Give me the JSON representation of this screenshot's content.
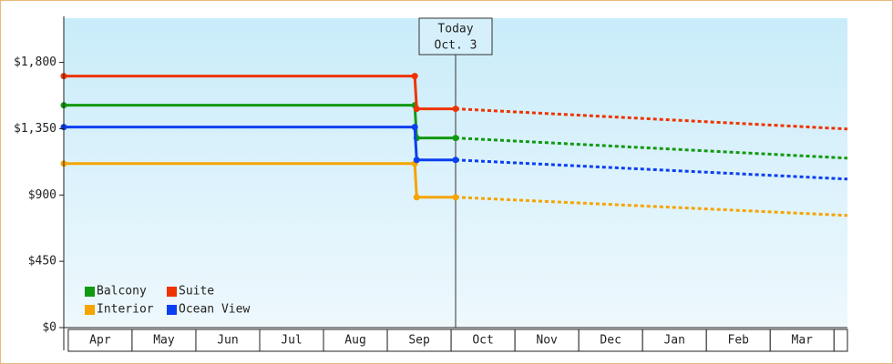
{
  "chart_data": {
    "type": "line",
    "categories": [
      "Apr",
      "May",
      "Jun",
      "Jul",
      "Aug",
      "Sep",
      "Oct",
      "Nov",
      "Dec",
      "Jan",
      "Feb",
      "Mar"
    ],
    "x": [
      -0.07,
      5.43,
      5.46,
      6.07
    ],
    "forecast_x": [
      6.07,
      12.21
    ],
    "xlim": [
      -0.07,
      12.21
    ],
    "ylim": [
      0,
      2100
    ],
    "yticks": [
      {
        "value": 0,
        "label": "$0"
      },
      {
        "value": 450,
        "label": "$450"
      },
      {
        "value": 900,
        "label": "$900"
      },
      {
        "value": 1350,
        "label": "$1,350"
      },
      {
        "value": 1800,
        "label": "$1,800"
      }
    ],
    "today": {
      "x": 6.07,
      "label": "Today",
      "date": "Oct. 3"
    },
    "series": [
      {
        "name": "Balcony",
        "color": "#119911",
        "values": [
          1509,
          1509,
          1287,
          1287
        ],
        "forecast": [
          1287,
          1150
        ]
      },
      {
        "name": "Suite",
        "color": "#ee3300",
        "values": [
          1707,
          1707,
          1485,
          1485
        ],
        "forecast": [
          1485,
          1348
        ]
      },
      {
        "name": "Interior",
        "color": "#f5a400",
        "values": [
          1113,
          1113,
          885,
          885
        ],
        "forecast": [
          885,
          761
        ]
      },
      {
        "name": "Ocean View",
        "color": "#0a3ff0",
        "values": [
          1361,
          1361,
          1138,
          1138
        ],
        "forecast": [
          1138,
          1008
        ]
      }
    ]
  }
}
